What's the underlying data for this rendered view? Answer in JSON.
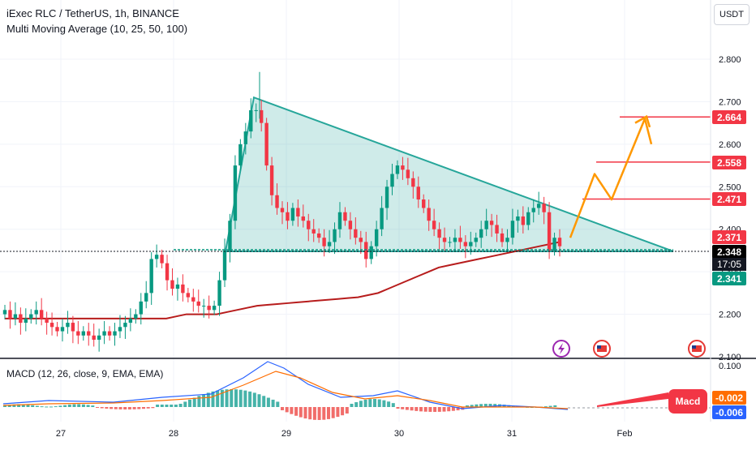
{
  "header": {
    "title": "iExec RLC / TetherUS, 1h, BINANCE",
    "indicator": "Multi Moving Average (10, 25, 50, 100)",
    "currency": "USDT"
  },
  "chart_data": {
    "type": "candlestick",
    "symbol": "iExec RLC / TetherUS",
    "interval": "1h",
    "exchange": "BINANCE",
    "y_ticks": [
      "2.800",
      "2.700",
      "2.600",
      "2.500",
      "2.400",
      "2.300",
      "2.200",
      "2.100"
    ],
    "x_ticks": [
      "27",
      "28",
      "29",
      "30",
      "31",
      "Feb"
    ],
    "ylim": [
      2.1,
      2.82
    ],
    "price_tags": [
      {
        "value": "2.664",
        "color": "#f23645"
      },
      {
        "value": "2.558",
        "color": "#f23645"
      },
      {
        "value": "2.471",
        "color": "#f23645"
      },
      {
        "value": "2.371",
        "color": "#f23645"
      },
      {
        "value": "2.348",
        "color": "#000000"
      },
      {
        "value": "2.341",
        "color": "#089981"
      }
    ],
    "countdown": "17:05",
    "target_levels": [
      2.664,
      2.558,
      2.471
    ],
    "support_level": 2.348,
    "triangle": {
      "apex_time": "Jan 28 ~17:00",
      "apex_price": 2.71,
      "base_left_price": 2.348,
      "base_right_price": 2.348
    },
    "projection_path": [
      2.38,
      2.53,
      2.47,
      2.66,
      2.6
    ],
    "candles_close": [
      2.21,
      2.19,
      2.2,
      2.18,
      2.19,
      2.2,
      2.21,
      2.19,
      2.18,
      2.17,
      2.16,
      2.17,
      2.18,
      2.16,
      2.15,
      2.16,
      2.15,
      2.14,
      2.15,
      2.16,
      2.15,
      2.16,
      2.17,
      2.18,
      2.19,
      2.2,
      2.23,
      2.25,
      2.33,
      2.34,
      2.32,
      2.28,
      2.26,
      2.27,
      2.25,
      2.24,
      2.23,
      2.22,
      2.22,
      2.21,
      2.22,
      2.28,
      2.35,
      2.42,
      2.55,
      2.6,
      2.63,
      2.68,
      2.68,
      2.65,
      2.55,
      2.48,
      2.45,
      2.44,
      2.42,
      2.45,
      2.43,
      2.42,
      2.4,
      2.39,
      2.38,
      2.36,
      2.37,
      2.4,
      2.44,
      2.42,
      2.4,
      2.38,
      2.37,
      2.33,
      2.36,
      2.4,
      2.45,
      2.5,
      2.53,
      2.55,
      2.54,
      2.52,
      2.5,
      2.47,
      2.45,
      2.42,
      2.4,
      2.38,
      2.37,
      2.37,
      2.38,
      2.37,
      2.36,
      2.37,
      2.38,
      2.4,
      2.42,
      2.41,
      2.39,
      2.37,
      2.38,
      2.42,
      2.43,
      2.41,
      2.44,
      2.45,
      2.46,
      2.44,
      2.35,
      2.38,
      2.36
    ],
    "ma_line": [
      2.19,
      2.19,
      2.19,
      2.19,
      2.19,
      2.19,
      2.19,
      2.19,
      2.19,
      2.19,
      2.19,
      2.19,
      2.19,
      2.19,
      2.19,
      2.19,
      2.19,
      2.195,
      2.2,
      2.2,
      2.2,
      2.2,
      2.205,
      2.21,
      2.215,
      2.22,
      2.222,
      2.224,
      2.226,
      2.228,
      2.23,
      2.232,
      2.234,
      2.236,
      2.238,
      2.24,
      2.245,
      2.25,
      2.26,
      2.27,
      2.28,
      2.29,
      2.3,
      2.31,
      2.315,
      2.32,
      2.325,
      2.33,
      2.335,
      2.34,
      2.345,
      2.35,
      2.355,
      2.36,
      2.365,
      2.37
    ],
    "macd": {
      "label": "MACD (12, 26, close, 9, EMA, EMA)",
      "y_ticks": [
        "0.100",
        "-0.002",
        "-0.006"
      ],
      "value_tags": [
        {
          "value": "-0.002",
          "color": "#ff6d00"
        },
        {
          "value": "-0.006",
          "color": "#2962ff"
        }
      ],
      "annotation": "Macd"
    }
  }
}
